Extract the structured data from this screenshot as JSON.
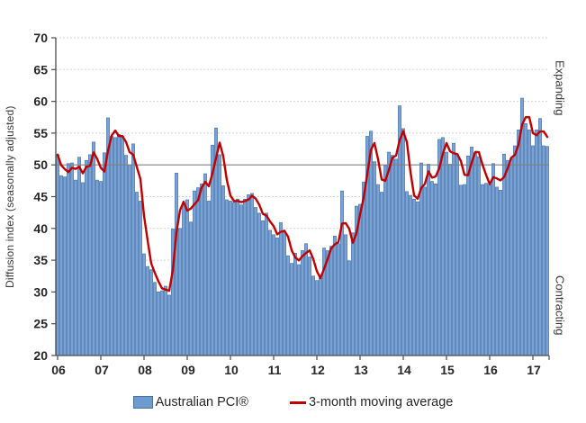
{
  "chart_data": {
    "type": "bar",
    "title": "",
    "xlabel": "",
    "ylabel": "Diffusion index (seasonally adjusted)",
    "ylim": [
      20,
      70
    ],
    "y_ticks": [
      20,
      25,
      30,
      35,
      40,
      45,
      50,
      55,
      60,
      65,
      70
    ],
    "baseline_value": 50,
    "grid": "horizontal-dashed",
    "x_start": "2006-01",
    "x_tick_labels": [
      "06",
      "07",
      "08",
      "09",
      "10",
      "11",
      "12",
      "13",
      "14",
      "15",
      "16",
      "17"
    ],
    "annotations": {
      "above_baseline": "Expanding",
      "below_baseline": "Contracting"
    },
    "legend_position": "bottom",
    "series": [
      {
        "name": "Australian PCI®",
        "type": "bar",
        "fill_color": "#7aa3d4",
        "border_color": "#4573ad",
        "values_note": "monthly, Jan 2006 - May 2017",
        "values": [
          51.6,
          48.3,
          48.1,
          50.2,
          50.3,
          47.6,
          51.2,
          47.2,
          50.7,
          51.6,
          53.6,
          47.6,
          47.4,
          51.9,
          57.4,
          54.5,
          54.3,
          54.8,
          54.5,
          51.5,
          50.0,
          53.3,
          45.7,
          44.3,
          36.0,
          34.0,
          33.5,
          31.5,
          30.0,
          30.2,
          30.9,
          29.5,
          39.9,
          48.7,
          40.0,
          43.9,
          44.5,
          41.0,
          45.9,
          46.4,
          47.0,
          48.6,
          44.3,
          53.1,
          55.8,
          51.6,
          46.7,
          44.5,
          44.3,
          44.1,
          44.6,
          43.7,
          44.6,
          45.3,
          45.5,
          43.3,
          42.4,
          41.2,
          42.4,
          39.7,
          39.0,
          38.5,
          40.9,
          39.5,
          35.7,
          34.5,
          36.1,
          34.3,
          36.5,
          37.6,
          35.5,
          32.5,
          31.8,
          32.2,
          36.9,
          36.5,
          37.2,
          38.8,
          37.6,
          45.9,
          39.0,
          34.9,
          39.3,
          43.5,
          43.8,
          47.3,
          54.5,
          55.3,
          50.5,
          46.9,
          45.7,
          49.9,
          52.0,
          51.5,
          50.9,
          59.3,
          55.7,
          45.8,
          45.2,
          44.6,
          44.2,
          50.3,
          46.5,
          50.1,
          47.4,
          47.0,
          54.0,
          54.3,
          52.0,
          50.1,
          53.4,
          51.6,
          46.8,
          46.9,
          51.4,
          52.8,
          51.9,
          51.3,
          46.9,
          47.1,
          46.9,
          50.2,
          46.5,
          46.0,
          51.7,
          50.7,
          51.0,
          53.0,
          55.5,
          60.5,
          56.5,
          55.5,
          53.0,
          55.5,
          57.3,
          53.0,
          52.9
        ]
      },
      {
        "name": "3-month moving average",
        "type": "line",
        "color": "#c00000",
        "derived_from": "3-month trailing moving average of Australian PCI® values"
      }
    ],
    "colors": {
      "gridline": "#d2d2d2",
      "baseline_50": "#808080",
      "axis": "#4d4d4d",
      "tick_text": "#262626"
    }
  },
  "legend": {
    "bar_label": "Australian PCI®",
    "line_label": "3-month moving average"
  },
  "labels": {
    "y_axis_title": "Diffusion index (seasonally adjusted)",
    "right_top": "Expanding",
    "right_bottom": "Contracting"
  }
}
